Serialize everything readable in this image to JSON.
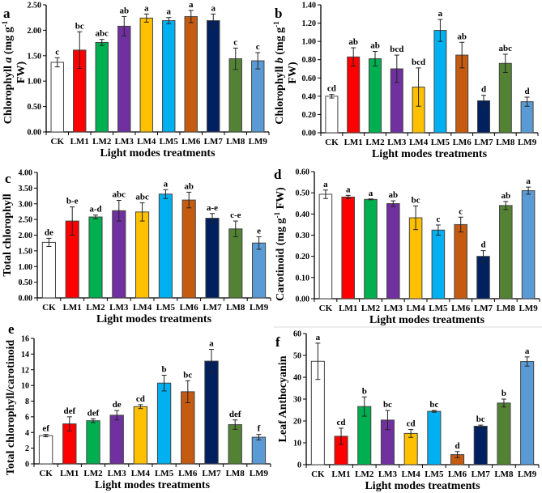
{
  "figure": {
    "divider_color": "#d9d9d9"
  },
  "colors": {
    "CK": "#ffffff",
    "LM1": "#ff0000",
    "LM2": "#00b050",
    "LM3": "#7030a0",
    "LM4": "#ffc000",
    "LM5": "#00b0f0",
    "LM6": "#c55a11",
    "LM7": "#002060",
    "LM8": "#548235",
    "LM9": "#5b9bd5"
  },
  "chart_data": [
    {
      "panel": "a",
      "type": "bar",
      "categories": [
        "CK",
        "LM1",
        "LM2",
        "LM3",
        "LM4",
        "LM5",
        "LM6",
        "LM7",
        "LM8",
        "LM9"
      ],
      "values": [
        1.37,
        1.61,
        1.76,
        2.08,
        2.24,
        2.19,
        2.27,
        2.19,
        1.44,
        1.4
      ],
      "errors": [
        0.09,
        0.36,
        0.06,
        0.19,
        0.08,
        0.06,
        0.12,
        0.13,
        0.21,
        0.16
      ],
      "letters": [
        "c",
        "bc",
        "abc",
        "ab",
        "a",
        "a",
        "a",
        "a",
        "c",
        "c"
      ],
      "ylim": [
        0,
        2.5
      ],
      "yticks": [
        0,
        0.5,
        1,
        1.5,
        2,
        2.5
      ],
      "decimals": 2,
      "xlabel": "Light modes treatments",
      "ylabel": [
        [
          {
            "t": "Chlorophyll "
          },
          {
            "t": "a",
            "i": true
          },
          {
            "t": " (mg g"
          },
          {
            "t": "-1",
            "sup": true
          }
        ],
        [
          {
            "t": "FW)"
          }
        ]
      ]
    },
    {
      "panel": "b",
      "type": "bar",
      "categories": [
        "CK",
        "LM1",
        "LM2",
        "LM3",
        "LM4",
        "LM5",
        "LM6",
        "LM7",
        "LM8",
        "LM9"
      ],
      "values": [
        0.4,
        0.83,
        0.81,
        0.7,
        0.5,
        1.12,
        0.85,
        0.35,
        0.76,
        0.34
      ],
      "errors": [
        0.02,
        0.1,
        0.08,
        0.15,
        0.21,
        0.12,
        0.14,
        0.06,
        0.1,
        0.05
      ],
      "letters": [
        "cd",
        "ab",
        "ab",
        "bcd",
        "bcd",
        "a",
        "ab",
        "d",
        "abc",
        "d"
      ],
      "ylim": [
        0,
        1.4
      ],
      "yticks": [
        0,
        0.2,
        0.4,
        0.6,
        0.8,
        1.0,
        1.2,
        1.4
      ],
      "decimals": 2,
      "xlabel": "Light modes treatments",
      "ylabel": [
        [
          {
            "t": "Chlorophyll "
          },
          {
            "t": "b",
            "i": true
          },
          {
            "t": " (mg g"
          },
          {
            "t": "-1",
            "sup": true
          }
        ],
        [
          {
            "t": "FW)"
          }
        ]
      ]
    },
    {
      "panel": "c",
      "type": "bar",
      "categories": [
        "CK",
        "LM1",
        "LM2",
        "LM3",
        "LM4",
        "LM5",
        "LM6",
        "LM7",
        "LM8",
        "LM9"
      ],
      "values": [
        1.77,
        2.45,
        2.58,
        2.78,
        2.74,
        3.31,
        3.12,
        2.54,
        2.2,
        1.75
      ],
      "errors": [
        0.13,
        0.45,
        0.06,
        0.33,
        0.29,
        0.14,
        0.25,
        0.15,
        0.25,
        0.2
      ],
      "letters": [
        "de",
        "b-e",
        "a-d",
        "abc",
        "abc",
        "a",
        "ab",
        "a-e",
        "c-e",
        "e"
      ],
      "ylim": [
        0,
        4
      ],
      "yticks": [
        0,
        0.5,
        1,
        1.5,
        2,
        2.5,
        3,
        3.5,
        4
      ],
      "decimals": 2,
      "xlabel": "Light modes treatments",
      "ylabel": [
        [
          {
            "t": "Total chlorophyll"
          }
        ]
      ]
    },
    {
      "panel": "d",
      "type": "bar",
      "categories": [
        "CK",
        "LM1",
        "LM2",
        "LM3",
        "LM4",
        "LM5",
        "LM6",
        "LM7",
        "LM8",
        "LM9"
      ],
      "values": [
        0.493,
        0.48,
        0.469,
        0.449,
        0.382,
        0.324,
        0.35,
        0.2,
        0.44,
        0.51
      ],
      "errors": [
        0.02,
        0.008,
        0.002,
        0.013,
        0.056,
        0.024,
        0.035,
        0.027,
        0.019,
        0.017
      ],
      "letters": [
        "a",
        "a",
        "a",
        "ab",
        "bc",
        "c",
        "c",
        "d",
        "ab",
        "a"
      ],
      "ylim": [
        0,
        0.6
      ],
      "yticks": [
        0,
        0.1,
        0.2,
        0.3,
        0.4,
        0.5,
        0.6
      ],
      "decimals": 2,
      "xlabel": "Light modes treatments",
      "ylabel": [
        [
          {
            "t": "Carotinoid (mg g"
          },
          {
            "t": "-1",
            "sup": true
          },
          {
            "t": " FW)"
          }
        ]
      ]
    },
    {
      "panel": "e",
      "type": "bar",
      "categories": [
        "CK",
        "LM1",
        "LM2",
        "LM3",
        "LM4",
        "LM5",
        "LM6",
        "LM7",
        "LM8",
        "LM9"
      ],
      "values": [
        3.6,
        5.1,
        5.5,
        6.2,
        7.3,
        10.3,
        9.2,
        13.1,
        5.0,
        3.4
      ],
      "errors": [
        0.15,
        0.9,
        0.25,
        0.6,
        0.25,
        1.0,
        1.4,
        1.5,
        0.6,
        0.35
      ],
      "letters": [
        "ef",
        "def",
        "def",
        "de",
        "cd",
        "b",
        "bc",
        "a",
        "def",
        "f"
      ],
      "ylim": [
        0,
        16
      ],
      "yticks": [
        0,
        2,
        4,
        6,
        8,
        10,
        12,
        14,
        16
      ],
      "decimals": 0,
      "xlabel": "Light modes treatments",
      "ylabel": [
        [
          {
            "t": "Total chlorophyll/carotinoid"
          }
        ]
      ]
    },
    {
      "panel": "f",
      "type": "bar",
      "categories": [
        "CK",
        "LM1",
        "LM2",
        "LM3",
        "LM4",
        "LM5",
        "LM6",
        "LM7",
        "LM8",
        "LM9"
      ],
      "values": [
        47.3,
        13.0,
        26.6,
        20.4,
        14.3,
        24.4,
        4.6,
        17.6,
        28.2,
        47.2
      ],
      "errors": [
        8.3,
        3.7,
        4.4,
        4.4,
        1.8,
        0.4,
        1.4,
        0.5,
        1.8,
        2.1
      ],
      "letters": [
        "a",
        "cd",
        "b",
        "bc",
        "cd",
        "bc",
        "d",
        "bc",
        "b",
        "a"
      ],
      "ylim": [
        0,
        60
      ],
      "yticks": [
        0,
        10,
        20,
        30,
        40,
        50,
        60
      ],
      "decimals": 0,
      "xlabel": "Light modes treatments",
      "ylabel": [
        [
          {
            "t": "Leaf Anthocyanin"
          }
        ]
      ]
    }
  ]
}
